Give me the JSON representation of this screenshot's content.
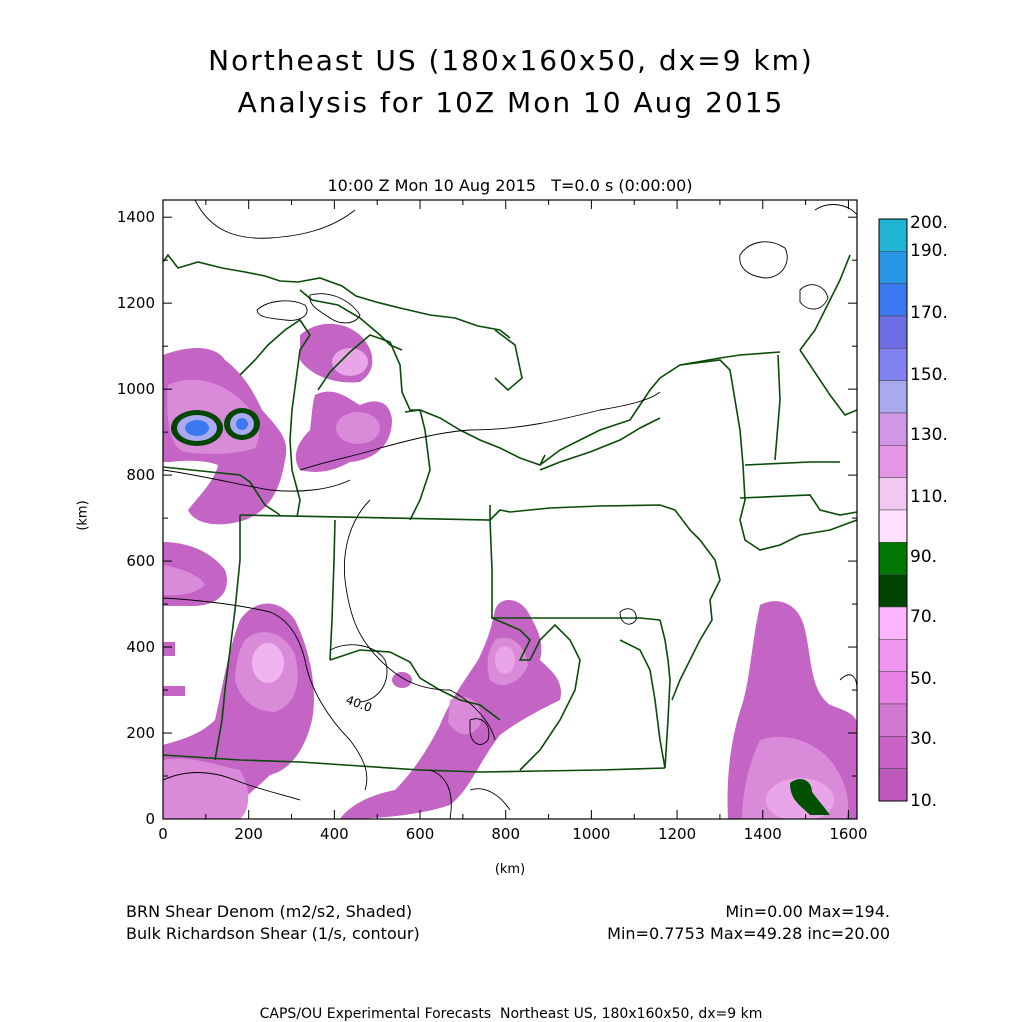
{
  "header": {
    "title_line1": "Northeast US (180x160x50, dx=9 km)",
    "title_line2": "Analysis for 10Z Mon 10 Aug 2015",
    "subtitle": "10:00 Z Mon 10 Aug 2015   T=0.0 s (0:00:00)"
  },
  "axes": {
    "xlabel": "(km)",
    "ylabel": "(km)",
    "x_ticks": [
      "0",
      "200",
      "400",
      "600",
      "800",
      "1000",
      "1200",
      "1400",
      "1600"
    ],
    "y_ticks": [
      "0",
      "200",
      "400",
      "600",
      "800",
      "1000",
      "1200",
      "1400"
    ],
    "xlim": [
      0,
      1620
    ],
    "ylim": [
      0,
      1440
    ]
  },
  "colorbar": {
    "labels": [
      "200.",
      "190.",
      "170.",
      "150.",
      "130.",
      "110.",
      "90.",
      "70.",
      "50.",
      "30.",
      "10."
    ],
    "colors": [
      "#1eb4d2",
      "#2896e6",
      "#3c78f0",
      "#6e6ee6",
      "#8282f0",
      "#aaaaf0",
      "#d296e6",
      "#e696e6",
      "#f0c8f0",
      "#ffe1ff",
      "#007800",
      "#004600",
      "#ffb4ff",
      "#f096f0",
      "#e682e6",
      "#d278d2",
      "#c864c8",
      "#be5abe"
    ]
  },
  "legend": {
    "shaded_label": "BRN Shear Denom (m2/s2, Shaded)",
    "shaded_minmax": "Min=0.00 Max=194.",
    "contour_label": "Bulk Richardson Shear (1/s, contour)",
    "contour_minmax": "Min=0.7753 Max=49.28 inc=20.00",
    "contour_value_label": "40.0"
  },
  "footer": "CAPS/OU Experimental Forecasts  Northeast US, 180x160x50, dx=9 km",
  "colors": {
    "border": "#0a4a0a",
    "shade_light": "#f0b4f0",
    "shade_mid": "#d98ad9",
    "shade_dark": "#c464c4",
    "contour": "#000000"
  }
}
